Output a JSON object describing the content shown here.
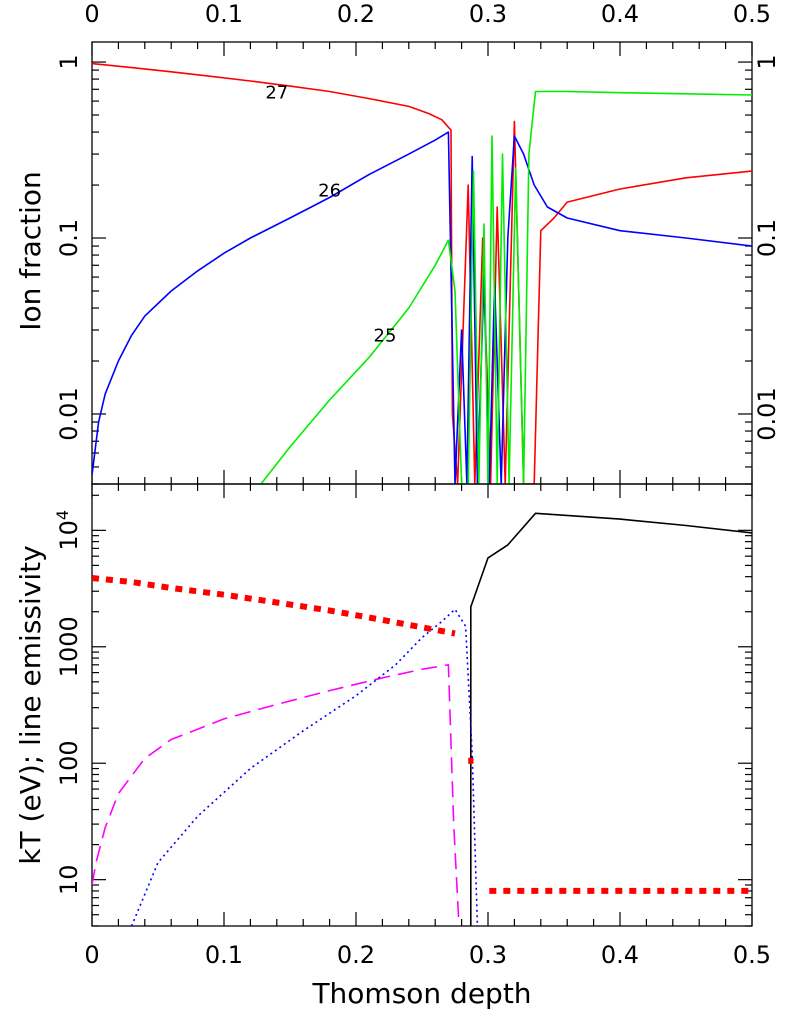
{
  "figure": {
    "xlabel": "Thomson depth",
    "xticks": [
      "0",
      "0.1",
      "0.2",
      "0.3",
      "0.4",
      "0.5"
    ]
  },
  "chart_data": [
    {
      "type": "line",
      "ylabel": "Ion fraction",
      "yscale": "log",
      "xlim": [
        0,
        0.5
      ],
      "ylim": [
        0.004,
        1.3
      ],
      "yticks": [
        {
          "value": 0.01,
          "label": "0.01"
        },
        {
          "value": 0.1,
          "label": "0.1"
        },
        {
          "value": 1,
          "label": "1"
        }
      ],
      "annotations": [
        {
          "text": "27",
          "x": 0.14,
          "y": 0.67
        },
        {
          "text": "26",
          "x": 0.18,
          "y": 0.186
        },
        {
          "text": "25",
          "x": 0.222,
          "y": 0.028
        }
      ],
      "series": [
        {
          "color": "#ff0000",
          "x": [
            0,
            0.03,
            0.06,
            0.09,
            0.12,
            0.15,
            0.18,
            0.21,
            0.24,
            0.255,
            0.265,
            0.272,
            0.273,
            0.277,
            0.285,
            0.29,
            0.296,
            0.302,
            0.307,
            0.313,
            0.32,
            0.327,
            0.33,
            0.335,
            0.34,
            0.35,
            0.36,
            0.4,
            0.45,
            0.5
          ],
          "y": [
            0.98,
            0.93,
            0.88,
            0.83,
            0.78,
            0.73,
            0.68,
            0.62,
            0.56,
            0.51,
            0.47,
            0.41,
            0.01,
            0.004,
            0.2,
            0.004,
            0.1,
            0.004,
            0.15,
            0.004,
            0.46,
            0.004,
            0.004,
            0.004,
            0.11,
            0.13,
            0.16,
            0.19,
            0.22,
            0.24
          ]
        },
        {
          "color": "#0000ff",
          "x": [
            0,
            0.005,
            0.01,
            0.02,
            0.03,
            0.04,
            0.06,
            0.08,
            0.1,
            0.12,
            0.15,
            0.18,
            0.21,
            0.24,
            0.26,
            0.27,
            0.275,
            0.28,
            0.284,
            0.288,
            0.292,
            0.297,
            0.301,
            0.305,
            0.31,
            0.315,
            0.32,
            0.327,
            0.335,
            0.345,
            0.36,
            0.4,
            0.45,
            0.5
          ],
          "y": [
            0.0045,
            0.009,
            0.013,
            0.02,
            0.028,
            0.036,
            0.05,
            0.065,
            0.082,
            0.1,
            0.13,
            0.17,
            0.23,
            0.3,
            0.36,
            0.4,
            0.004,
            0.03,
            0.004,
            0.29,
            0.004,
            0.06,
            0.004,
            0.055,
            0.004,
            0.1,
            0.38,
            0.3,
            0.2,
            0.15,
            0.13,
            0.11,
            0.1,
            0.09
          ]
        },
        {
          "color": "#00ee00",
          "x": [
            0.128,
            0.15,
            0.18,
            0.21,
            0.24,
            0.26,
            0.27,
            0.275,
            0.28,
            0.285,
            0.289,
            0.293,
            0.297,
            0.3,
            0.303,
            0.307,
            0.311,
            0.316,
            0.321,
            0.327,
            0.331,
            0.336,
            0.36,
            0.4,
            0.45,
            0.5
          ],
          "y": [
            0.004,
            0.0065,
            0.012,
            0.021,
            0.04,
            0.07,
            0.097,
            0.05,
            0.004,
            0.004,
            0.24,
            0.004,
            0.12,
            0.004,
            0.38,
            0.004,
            0.3,
            0.004,
            0.25,
            0.004,
            0.3,
            0.68,
            0.68,
            0.67,
            0.66,
            0.65
          ]
        }
      ]
    },
    {
      "type": "line",
      "ylabel": "kT (eV); line emissivity",
      "yscale": "log",
      "xlim": [
        0,
        0.5
      ],
      "ylim": [
        4,
        25000
      ],
      "yticks": [
        {
          "value": 10,
          "label": "10"
        },
        {
          "value": 100,
          "label": "100"
        },
        {
          "value": 1000,
          "label": "1000"
        },
        {
          "value": 10000,
          "label": "10",
          "sup": "4"
        }
      ],
      "series": [
        {
          "color": "#000000",
          "dash": "",
          "x": [
            0.287,
            0.287,
            0.287,
            0.287,
            0.287,
            0.3,
            0.315,
            0.336,
            0.4,
            0.45,
            0.5
          ],
          "y": [
            4,
            200,
            1000,
            1800,
            2200,
            5800,
            7500,
            14000,
            12500,
            11000,
            9500
          ]
        },
        {
          "color": "#ff00ff",
          "dash": "16 8",
          "x": [
            0,
            0.003,
            0.01,
            0.02,
            0.04,
            0.06,
            0.1,
            0.14,
            0.18,
            0.22,
            0.25,
            0.27,
            0.274,
            0.278
          ],
          "y": [
            9,
            14,
            28,
            55,
            110,
            160,
            240,
            320,
            420,
            540,
            640,
            700,
            30,
            4
          ]
        },
        {
          "color": "#0000ff",
          "dash": "2 3.5",
          "x": [
            0.03,
            0.05,
            0.08,
            0.12,
            0.16,
            0.2,
            0.23,
            0.25,
            0.265,
            0.275,
            0.283,
            0.288,
            0.292
          ],
          "y": [
            4,
            14,
            35,
            90,
            190,
            380,
            700,
            1200,
            1650,
            2100,
            1500,
            120,
            4
          ]
        },
        {
          "color": "#ff0000",
          "dash": "7 7",
          "width": 6,
          "x": [
            0,
            0.03,
            0.06,
            0.1,
            0.14,
            0.18,
            0.22,
            0.26,
            0.275
          ],
          "y": [
            3900,
            3600,
            3200,
            2800,
            2400,
            2050,
            1700,
            1400,
            1300
          ]
        },
        {
          "color": "#ff0000",
          "dash": "",
          "width": 6,
          "x": [
            0.285,
            0.289
          ],
          "y": [
            105,
            105
          ]
        },
        {
          "color": "#ff0000",
          "dash": "7 7",
          "width": 6,
          "x": [
            0.301,
            0.5
          ],
          "y": [
            8,
            8
          ]
        }
      ]
    }
  ]
}
